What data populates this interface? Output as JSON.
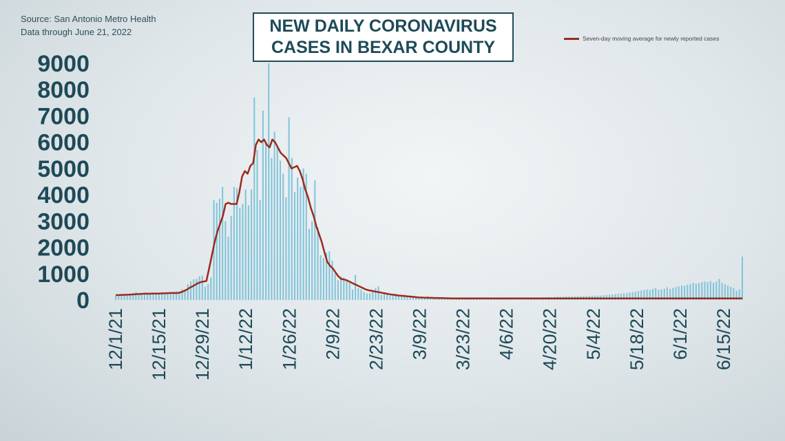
{
  "source_line1": "Source: San Antonio Metro Health",
  "source_line2": "Data through June 21, 2022",
  "title_line1": "NEW DAILY CORONAVIRUS",
  "title_line2": "CASES IN BEXAR COUNTY",
  "legend_label": "Seven-day moving average for newly reported cases",
  "colors": {
    "bars": "#7fc3da",
    "line": "#9a2a1c",
    "text": "#1e4a58"
  },
  "chart_data": {
    "type": "bar",
    "title": "NEW DAILY CORONAVIRUS CASES IN BEXAR COUNTY",
    "ylim": [
      0,
      9000
    ],
    "grid": false,
    "legend_position": "top-right",
    "y_ticks": [
      "0",
      "1000",
      "2000",
      "3000",
      "4000",
      "5000",
      "6000",
      "7000",
      "8000",
      "9000"
    ],
    "x_ticks": [
      "12/1/21",
      "12/15/21",
      "12/29/21",
      "1/12/22",
      "1/26/22",
      "2/9/22",
      "2/23/22",
      "3/9/22",
      "3/23/22",
      "4/6/22",
      "4/20/22",
      "5/4/22",
      "5/18/22",
      "6/1/22",
      "6/15/22"
    ],
    "x_start": "12/1/21",
    "x_end": "6/21/22",
    "series": [
      {
        "name": "New daily cases",
        "type": "bar",
        "values": [
          150,
          170,
          180,
          200,
          210,
          240,
          260,
          300,
          250,
          200,
          230,
          260,
          220,
          240,
          250,
          210,
          300,
          280,
          260,
          270,
          300,
          330,
          250,
          420,
          400,
          600,
          700,
          780,
          800,
          900,
          920,
          500,
          600,
          850,
          3800,
          3700,
          3850,
          4300,
          3000,
          2400,
          3200,
          4300,
          4250,
          3500,
          3650,
          4200,
          3600,
          4200,
          7700,
          5700,
          3800,
          7200,
          6000,
          9000,
          5400,
          6400,
          5800,
          5300,
          4800,
          3900,
          6950,
          5400,
          4100,
          4650,
          4300,
          5000,
          4800,
          2700,
          3000,
          4550,
          2750,
          1700,
          1600,
          1800,
          1850,
          1500,
          1000,
          750,
          900,
          850,
          750,
          650,
          400,
          950,
          450,
          400,
          300,
          250,
          250,
          350,
          450,
          520,
          200,
          250,
          250,
          150,
          200,
          250,
          150,
          150,
          200,
          150,
          100,
          150,
          100,
          100,
          120,
          80,
          150,
          90,
          100,
          70,
          60,
          80,
          60,
          60,
          50,
          50,
          70,
          60,
          50,
          40,
          60,
          50,
          40,
          60,
          50,
          40,
          60,
          50,
          30,
          60,
          50,
          60,
          60,
          50,
          60,
          70,
          60,
          70,
          70,
          60,
          70,
          70,
          80,
          80,
          90,
          90,
          100,
          100,
          110,
          100,
          110,
          120,
          120,
          120,
          130,
          130,
          130,
          140,
          140,
          140,
          150,
          150,
          150,
          160,
          160,
          170,
          170,
          180,
          190,
          200,
          210,
          220,
          230,
          240,
          250,
          260,
          280,
          300,
          320,
          340,
          360,
          380,
          400,
          380,
          420,
          460,
          380,
          400,
          430,
          480,
          420,
          450,
          490,
          520,
          550,
          540,
          580,
          600,
          650,
          620,
          640,
          680,
          700,
          680,
          720,
          650,
          700,
          800,
          650,
          600,
          550,
          500,
          450,
          350,
          400,
          1650
        ]
      },
      {
        "name": "Seven-day moving average for newly reported cases",
        "type": "line",
        "values": [
          180,
          185,
          190,
          195,
          200,
          205,
          210,
          215,
          225,
          230,
          235,
          240,
          235,
          240,
          245,
          240,
          245,
          250,
          255,
          260,
          265,
          270,
          260,
          275,
          300,
          350,
          400,
          470,
          520,
          580,
          640,
          680,
          700,
          720,
          1200,
          1700,
          2200,
          2600,
          2900,
          3200,
          3650,
          3700,
          3650,
          3650,
          3650,
          4100,
          4700,
          4900,
          4800,
          5100,
          5200,
          5900,
          6100,
          6000,
          6100,
          5900,
          5800,
          6100,
          6000,
          5800,
          5600,
          5500,
          5400,
          5200,
          5000,
          5050,
          5100,
          4900,
          4600,
          4200,
          3900,
          3500,
          3200,
          2800,
          2500,
          2200,
          1800,
          1450,
          1300,
          1200,
          1050,
          900,
          800,
          780,
          750,
          700,
          650,
          600,
          550,
          500,
          450,
          400,
          370,
          350,
          330,
          310,
          290,
          270,
          250,
          230,
          210,
          200,
          180,
          170,
          160,
          150,
          140,
          130,
          120,
          110,
          100,
          95,
          90,
          85,
          80,
          80,
          75,
          75,
          70,
          70,
          65,
          65,
          60,
          60,
          60,
          60,
          60,
          60,
          60,
          60,
          60,
          60,
          60,
          60,
          60,
          60,
          60,
          60,
          60,
          60,
          60,
          60,
          60,
          60,
          60,
          60,
          60,
          60,
          60,
          60,
          60,
          60,
          60,
          60,
          60,
          60,
          60,
          60,
          60,
          60,
          60,
          60,
          60,
          60,
          60,
          60,
          60,
          60,
          60,
          60,
          60,
          60,
          60,
          60,
          60,
          60,
          60,
          60,
          60,
          60,
          60,
          60,
          60,
          60,
          60,
          60,
          60,
          60,
          60,
          60,
          60,
          60,
          60,
          60,
          60,
          60,
          60,
          60,
          60,
          60,
          60,
          60,
          60,
          60,
          60,
          60,
          60,
          60,
          60,
          60,
          60,
          60,
          60,
          60,
          60,
          60,
          60,
          60,
          60,
          60,
          60,
          60,
          60,
          60,
          60,
          60,
          60,
          60,
          60
        ]
      }
    ]
  }
}
